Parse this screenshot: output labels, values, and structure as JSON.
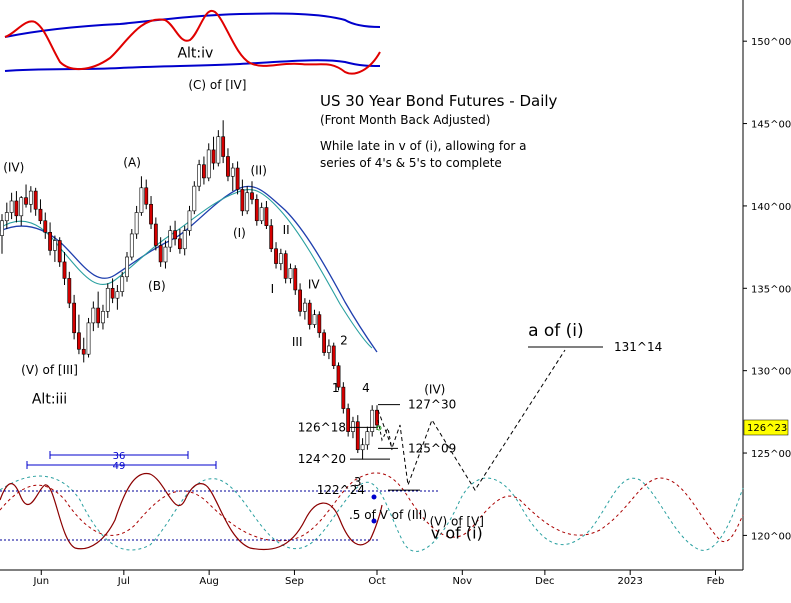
{
  "chart_data": {
    "type": "candlestick",
    "title": "US 30 Year Bond Futures - Daily",
    "subtitle": "(Front Month Back Adjusted)",
    "note_lines": [
      "While late in v of (i), allowing for a",
      "series of 4's & 5's to complete"
    ],
    "y_axis": {
      "position": "right",
      "ticks": [
        {
          "label": "150^00",
          "value": 150
        },
        {
          "label": "145^00",
          "value": 145
        },
        {
          "label": "140^00",
          "value": 140
        },
        {
          "label": "135^00",
          "value": 135
        },
        {
          "label": "130^00",
          "value": 130
        },
        {
          "label": "125^00",
          "value": 125
        },
        {
          "label": "120^00",
          "value": 120
        }
      ],
      "ylim": [
        117.9,
        152.5
      ]
    },
    "x_axis": {
      "ticks": [
        {
          "label": "Jun",
          "day": 30
        },
        {
          "label": "Jul",
          "day": 60
        },
        {
          "label": "Aug",
          "day": 91
        },
        {
          "label": "Sep",
          "day": 122
        },
        {
          "label": "Oct",
          "day": 152
        },
        {
          "label": "Nov",
          "day": 183
        },
        {
          "label": "Dec",
          "day": 213
        },
        {
          "label": "2023",
          "day": 244
        },
        {
          "label": "Feb",
          "day": 275
        }
      ],
      "range_days": [
        15,
        285
      ]
    },
    "last_price": {
      "label": "126^23",
      "value": 126.72,
      "color": "#ffff00"
    },
    "wave_labels": [
      {
        "text": "(IV)",
        "day": 20,
        "price": 142.1
      },
      {
        "text": "(A)",
        "day": 63,
        "price": 142.4
      },
      {
        "text": "(B)",
        "day": 72,
        "price": 134.9
      },
      {
        "text": "(C) of [IV]",
        "day": 94,
        "price": 147.1
      },
      {
        "text": "(II)",
        "day": 109,
        "price": 141.9
      },
      {
        "text": "(I)",
        "day": 102,
        "price": 138.1
      },
      {
        "text": "II",
        "day": 119,
        "price": 138.3
      },
      {
        "text": "I",
        "day": 114,
        "price": 134.7
      },
      {
        "text": "IV",
        "day": 129,
        "price": 135.0
      },
      {
        "text": "III",
        "day": 123,
        "price": 131.5
      },
      {
        "text": "2",
        "day": 140,
        "price": 131.6
      },
      {
        "text": "1",
        "day": 137,
        "price": 128.7
      },
      {
        "text": "4",
        "day": 148,
        "price": 128.7
      },
      {
        "text": "3",
        "day": 145,
        "price": 123.0
      },
      {
        "text": "(V) of [III]",
        "day": 33,
        "price": 129.8
      },
      {
        "text": "Alt:iii",
        "day": 33,
        "price": 128.0
      },
      {
        "text": "(IV)",
        "day": 173,
        "price": 128.6
      },
      {
        "text": ".5 of V of (III)",
        "day": 156,
        "price": 121.0
      },
      {
        "text": "(V) of [V]",
        "day": 181,
        "price": 120.6
      },
      {
        "text": "v of (i)",
        "day": 181,
        "price": 119.8
      },
      {
        "text": "a of (i)",
        "day": 217,
        "price": 132.1
      },
      {
        "text": "Alt:iv",
        "day": 86,
        "price": 149.0
      }
    ],
    "levels": [
      {
        "label": "131^14",
        "value": 131.44
      },
      {
        "label": "127^30",
        "value": 127.94
      },
      {
        "label": "126^18",
        "value": 126.56
      },
      {
        "label": "125^09",
        "value": 125.28
      },
      {
        "label": "124^20",
        "value": 124.63
      },
      {
        "label": "122^24",
        "value": 122.75
      }
    ],
    "cycle_periods": [
      {
        "label": "36",
        "day_start": 28,
        "day_end": 85
      },
      {
        "label": "49",
        "day_start": 19,
        "day_end": 90
      }
    ],
    "candles": [
      {
        "o": 138.2,
        "h": 139.5,
        "l": 137.1,
        "c": 139.1
      },
      {
        "o": 139.1,
        "h": 140.2,
        "l": 138.6,
        "c": 139.6
      },
      {
        "o": 139.6,
        "h": 140.8,
        "l": 139.2,
        "c": 140.3
      },
      {
        "o": 140.3,
        "h": 140.9,
        "l": 139.0,
        "c": 139.4
      },
      {
        "o": 139.4,
        "h": 140.6,
        "l": 138.8,
        "c": 140.5
      },
      {
        "o": 140.5,
        "h": 141.3,
        "l": 139.9,
        "c": 140.1
      },
      {
        "o": 140.1,
        "h": 141.2,
        "l": 139.6,
        "c": 140.9
      },
      {
        "o": 140.9,
        "h": 141.1,
        "l": 139.4,
        "c": 139.8
      },
      {
        "o": 139.8,
        "h": 140.4,
        "l": 138.9,
        "c": 139.1
      },
      {
        "o": 139.1,
        "h": 139.6,
        "l": 138.0,
        "c": 138.4
      },
      {
        "o": 138.4,
        "h": 139.0,
        "l": 137.0,
        "c": 137.3
      },
      {
        "o": 137.3,
        "h": 138.2,
        "l": 136.6,
        "c": 137.9
      },
      {
        "o": 137.9,
        "h": 138.1,
        "l": 136.3,
        "c": 136.6
      },
      {
        "o": 136.6,
        "h": 137.2,
        "l": 135.2,
        "c": 135.6
      },
      {
        "o": 135.6,
        "h": 136.0,
        "l": 133.8,
        "c": 134.1
      },
      {
        "o": 134.1,
        "h": 134.6,
        "l": 131.9,
        "c": 132.3
      },
      {
        "o": 132.3,
        "h": 133.4,
        "l": 131.0,
        "c": 131.3
      },
      {
        "o": 131.3,
        "h": 132.0,
        "l": 130.5,
        "c": 131.0
      },
      {
        "o": 131.0,
        "h": 133.2,
        "l": 130.8,
        "c": 132.9
      },
      {
        "o": 132.9,
        "h": 134.2,
        "l": 132.4,
        "c": 133.8
      },
      {
        "o": 133.8,
        "h": 134.8,
        "l": 132.6,
        "c": 132.9
      },
      {
        "o": 132.9,
        "h": 134.0,
        "l": 132.5,
        "c": 133.6
      },
      {
        "o": 133.6,
        "h": 135.3,
        "l": 133.2,
        "c": 135.0
      },
      {
        "o": 135.0,
        "h": 135.6,
        "l": 134.1,
        "c": 134.4
      },
      {
        "o": 134.4,
        "h": 135.2,
        "l": 133.7,
        "c": 134.8
      },
      {
        "o": 134.8,
        "h": 136.0,
        "l": 134.5,
        "c": 135.7
      },
      {
        "o": 135.7,
        "h": 137.2,
        "l": 135.4,
        "c": 136.9
      },
      {
        "o": 136.9,
        "h": 138.6,
        "l": 136.7,
        "c": 138.3
      },
      {
        "o": 138.3,
        "h": 140.0,
        "l": 138.0,
        "c": 139.6
      },
      {
        "o": 139.6,
        "h": 141.8,
        "l": 139.4,
        "c": 141.1
      },
      {
        "o": 141.1,
        "h": 141.6,
        "l": 139.8,
        "c": 140.1
      },
      {
        "o": 140.1,
        "h": 140.6,
        "l": 138.6,
        "c": 138.9
      },
      {
        "o": 138.9,
        "h": 139.3,
        "l": 137.3,
        "c": 137.6
      },
      {
        "o": 137.6,
        "h": 138.1,
        "l": 136.3,
        "c": 136.6
      },
      {
        "o": 136.6,
        "h": 137.9,
        "l": 136.2,
        "c": 137.5
      },
      {
        "o": 137.5,
        "h": 138.8,
        "l": 137.2,
        "c": 138.5
      },
      {
        "o": 138.5,
        "h": 139.1,
        "l": 137.6,
        "c": 138.0
      },
      {
        "o": 138.0,
        "h": 138.6,
        "l": 137.1,
        "c": 137.4
      },
      {
        "o": 137.4,
        "h": 138.8,
        "l": 137.0,
        "c": 138.5
      },
      {
        "o": 138.5,
        "h": 140.0,
        "l": 138.2,
        "c": 139.7
      },
      {
        "o": 139.7,
        "h": 141.5,
        "l": 139.5,
        "c": 141.2
      },
      {
        "o": 141.2,
        "h": 142.8,
        "l": 140.9,
        "c": 142.5
      },
      {
        "o": 142.5,
        "h": 143.0,
        "l": 141.3,
        "c": 141.7
      },
      {
        "o": 141.7,
        "h": 143.8,
        "l": 141.5,
        "c": 143.4
      },
      {
        "o": 143.4,
        "h": 144.2,
        "l": 142.2,
        "c": 142.6
      },
      {
        "o": 142.6,
        "h": 144.6,
        "l": 142.4,
        "c": 144.2
      },
      {
        "o": 144.2,
        "h": 145.2,
        "l": 142.6,
        "c": 143.0
      },
      {
        "o": 143.0,
        "h": 143.5,
        "l": 141.5,
        "c": 141.8
      },
      {
        "o": 141.8,
        "h": 142.6,
        "l": 140.9,
        "c": 142.3
      },
      {
        "o": 142.3,
        "h": 142.7,
        "l": 140.7,
        "c": 141.0
      },
      {
        "o": 141.0,
        "h": 141.6,
        "l": 139.4,
        "c": 139.7
      },
      {
        "o": 139.7,
        "h": 141.2,
        "l": 139.5,
        "c": 140.8
      },
      {
        "o": 140.8,
        "h": 141.5,
        "l": 140.1,
        "c": 140.4
      },
      {
        "o": 140.4,
        "h": 140.7,
        "l": 138.8,
        "c": 139.1
      },
      {
        "o": 139.1,
        "h": 140.2,
        "l": 138.9,
        "c": 139.9
      },
      {
        "o": 139.9,
        "h": 140.3,
        "l": 138.6,
        "c": 138.8
      },
      {
        "o": 138.8,
        "h": 139.2,
        "l": 137.2,
        "c": 137.4
      },
      {
        "o": 137.4,
        "h": 137.8,
        "l": 136.2,
        "c": 136.5
      },
      {
        "o": 136.5,
        "h": 137.4,
        "l": 136.1,
        "c": 137.1
      },
      {
        "o": 137.1,
        "h": 137.3,
        "l": 135.3,
        "c": 135.6
      },
      {
        "o": 135.6,
        "h": 136.5,
        "l": 135.3,
        "c": 136.2
      },
      {
        "o": 136.2,
        "h": 136.4,
        "l": 134.6,
        "c": 134.9
      },
      {
        "o": 134.9,
        "h": 135.3,
        "l": 133.3,
        "c": 133.6
      },
      {
        "o": 133.6,
        "h": 134.4,
        "l": 133.1,
        "c": 134.1
      },
      {
        "o": 134.1,
        "h": 134.3,
        "l": 132.5,
        "c": 132.8
      },
      {
        "o": 132.8,
        "h": 133.7,
        "l": 132.6,
        "c": 133.4
      },
      {
        "o": 133.4,
        "h": 133.6,
        "l": 132.0,
        "c": 132.3
      },
      {
        "o": 132.3,
        "h": 132.5,
        "l": 130.9,
        "c": 131.1
      },
      {
        "o": 131.1,
        "h": 131.9,
        "l": 130.7,
        "c": 131.5
      },
      {
        "o": 131.5,
        "h": 131.7,
        "l": 130.1,
        "c": 130.3
      },
      {
        "o": 130.3,
        "h": 130.5,
        "l": 128.8,
        "c": 129.0
      },
      {
        "o": 129.0,
        "h": 129.3,
        "l": 127.4,
        "c": 127.7
      },
      {
        "o": 127.7,
        "h": 128.0,
        "l": 126.0,
        "c": 126.3
      },
      {
        "o": 126.3,
        "h": 127.2,
        "l": 125.9,
        "c": 126.9
      },
      {
        "o": 126.9,
        "h": 127.3,
        "l": 125.0,
        "c": 125.2
      },
      {
        "o": 125.2,
        "h": 125.9,
        "l": 124.6,
        "c": 125.5
      },
      {
        "o": 125.5,
        "h": 126.6,
        "l": 125.2,
        "c": 126.3
      },
      {
        "o": 126.3,
        "h": 127.9,
        "l": 126.0,
        "c": 127.6
      },
      {
        "o": 127.6,
        "h": 127.9,
        "l": 126.4,
        "c": 126.7
      }
    ]
  }
}
